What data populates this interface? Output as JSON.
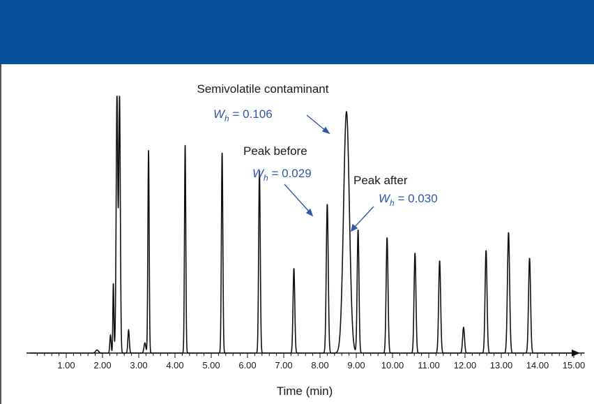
{
  "colors": {
    "banner": "#0a4f9b",
    "trace": "#111111",
    "annotation_blue": "#2f57a8",
    "annotation_black": "#1a1a1a"
  },
  "chart_data": {
    "type": "line",
    "title": "",
    "xlabel": "Time (min)",
    "ylabel": "",
    "xlim": [
      0.3,
      15.5
    ],
    "ylim": [
      0,
      100
    ],
    "x_ticks": [
      "1.00",
      "2.00",
      "3.00",
      "4.00",
      "5.00",
      "6.00",
      "7.00",
      "8.00",
      "9.00",
      "10.00",
      "11.00",
      "12.00",
      "13.00",
      "14.00",
      "15.00"
    ],
    "peaks": [
      {
        "rt": 1.85,
        "height": 1.2,
        "width": 0.04
      },
      {
        "rt": 2.22,
        "height": 7,
        "width": 0.018
      },
      {
        "rt": 2.3,
        "height": 27,
        "width": 0.014
      },
      {
        "rt": 2.35,
        "height": 3,
        "width": 0.02
      },
      {
        "rt": 2.4,
        "height": 100,
        "width": 0.022
      },
      {
        "rt": 2.47,
        "height": 100,
        "width": 0.022
      },
      {
        "rt": 2.72,
        "height": 9,
        "width": 0.02
      },
      {
        "rt": 3.17,
        "height": 4,
        "width": 0.025
      },
      {
        "rt": 3.27,
        "height": 79,
        "width": 0.018
      },
      {
        "rt": 4.28,
        "height": 81,
        "width": 0.018
      },
      {
        "rt": 5.3,
        "height": 78,
        "width": 0.02
      },
      {
        "rt": 6.33,
        "height": 71,
        "width": 0.022
      },
      {
        "rt": 7.28,
        "height": 33,
        "width": 0.024
      },
      {
        "rt": 8.2,
        "height": 58,
        "width": 0.027
      },
      {
        "rt": 8.73,
        "height": 94,
        "width": 0.08
      },
      {
        "rt": 9.05,
        "height": 48,
        "width": 0.025
      },
      {
        "rt": 9.85,
        "height": 45,
        "width": 0.026
      },
      {
        "rt": 10.62,
        "height": 39,
        "width": 0.026
      },
      {
        "rt": 11.3,
        "height": 36,
        "width": 0.027
      },
      {
        "rt": 11.96,
        "height": 10,
        "width": 0.026
      },
      {
        "rt": 12.58,
        "height": 40,
        "width": 0.027
      },
      {
        "rt": 13.2,
        "height": 47,
        "width": 0.03
      },
      {
        "rt": 13.78,
        "height": 37,
        "width": 0.028
      }
    ],
    "annotations": [
      {
        "id": "title",
        "text": "Semivolatile contaminant"
      },
      {
        "id": "wh_main",
        "w": "W",
        "sub": "h",
        "rest": " = 0.106"
      },
      {
        "id": "peak_before",
        "text": "Peak before"
      },
      {
        "id": "wh_before",
        "w": "W",
        "sub": "h",
        "rest": " = 0.029"
      },
      {
        "id": "peak_after",
        "text": "Peak after"
      },
      {
        "id": "wh_after",
        "w": "W",
        "sub": "h",
        "rest": " = 0.030"
      }
    ]
  }
}
